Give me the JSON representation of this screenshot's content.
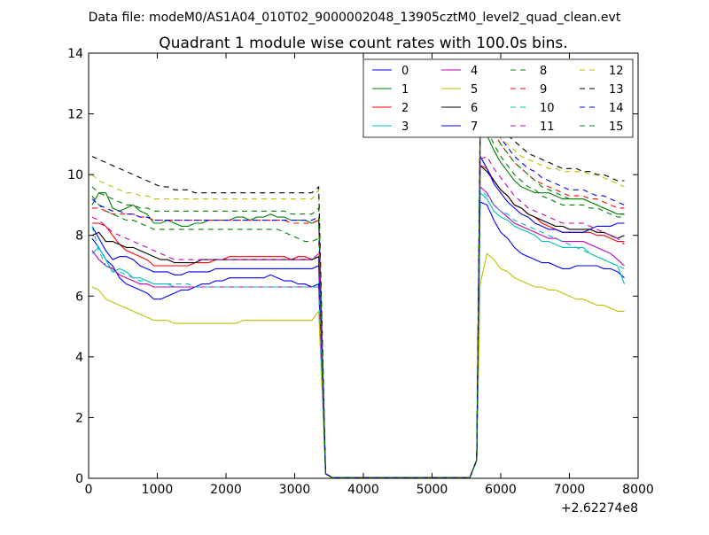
{
  "suptitle": "Data file: modeM0/AS1A04_010T02_9000002048_13905cztM0_level2_quad_clean.evt",
  "chart_data": {
    "type": "line",
    "title": "Quadrant 1 module wise count rates with 100.0s bins.",
    "xlabel": "",
    "ylabel": "",
    "x_offset_label": "+2.62274e8",
    "xlim": [
      0,
      8000
    ],
    "ylim": [
      0,
      14
    ],
    "xticks": [
      0,
      1000,
      2000,
      3000,
      4000,
      5000,
      6000,
      7000,
      8000
    ],
    "yticks": [
      0,
      2,
      4,
      6,
      8,
      10,
      12,
      14
    ],
    "grid": false,
    "legend_position": "top-right",
    "legend_columns": 4,
    "x_gap_start": 3500,
    "x_gap_end": 5600,
    "series": [
      {
        "name": "0",
        "color": "#0000ff",
        "dash": "solid",
        "segA": [
          7.9,
          7.6,
          7.2,
          7.0,
          6.6,
          6.4,
          6.3,
          6.2,
          6.1,
          5.9,
          5.9,
          6.0,
          6.1,
          6.2,
          6.2,
          6.3,
          6.4,
          6.4,
          6.5,
          6.5,
          6.6,
          6.6,
          6.6,
          6.6,
          6.6,
          6.6,
          6.7,
          6.6,
          6.5,
          6.5,
          6.4,
          6.4,
          6.3,
          6.4
        ],
        "segB": [
          9.1,
          9.0,
          8.5,
          8.1,
          7.9,
          7.6,
          7.4,
          7.3,
          7.2,
          7.1,
          7.1,
          7.0,
          6.9,
          6.9,
          7.0,
          7.0,
          7.0,
          7.0,
          6.9,
          6.9,
          6.8,
          6.6
        ]
      },
      {
        "name": "1",
        "color": "#008000",
        "dash": "solid",
        "segA": [
          9.0,
          9.4,
          9.4,
          8.9,
          8.8,
          8.9,
          9.0,
          8.8,
          8.7,
          8.4,
          8.4,
          8.5,
          8.4,
          8.3,
          8.3,
          8.4,
          8.4,
          8.5,
          8.5,
          8.5,
          8.5,
          8.6,
          8.6,
          8.5,
          8.6,
          8.6,
          8.7,
          8.6,
          8.6,
          8.5,
          8.5,
          8.5,
          8.4,
          8.5
        ],
        "segB": [
          11.4,
          11.3,
          10.8,
          10.4,
          10.1,
          9.8,
          9.6,
          9.5,
          9.4,
          9.4,
          9.4,
          9.3,
          9.2,
          9.2,
          9.2,
          9.2,
          9.1,
          9.0,
          8.9,
          8.8,
          8.7,
          8.7
        ]
      },
      {
        "name": "2",
        "color": "#ff0000",
        "dash": "solid",
        "segA": [
          8.4,
          8.4,
          8.3,
          8.0,
          7.7,
          7.5,
          7.4,
          7.3,
          7.2,
          7.0,
          7.0,
          7.0,
          7.0,
          7.0,
          7.0,
          7.1,
          7.1,
          7.1,
          7.2,
          7.2,
          7.3,
          7.3,
          7.3,
          7.3,
          7.3,
          7.3,
          7.3,
          7.3,
          7.3,
          7.2,
          7.3,
          7.3,
          7.2,
          7.3
        ],
        "segB": [
          10.3,
          10.2,
          9.8,
          9.5,
          9.3,
          9.0,
          8.9,
          8.7,
          8.6,
          8.4,
          8.3,
          8.2,
          8.1,
          8.1,
          8.1,
          8.1,
          8.1,
          8.0,
          8.0,
          7.9,
          7.8,
          7.8
        ]
      },
      {
        "name": "3",
        "color": "#00bfbf",
        "dash": "solid",
        "segA": [
          7.4,
          7.6,
          7.2,
          6.8,
          6.9,
          6.8,
          6.6,
          6.6,
          6.5,
          6.4,
          6.4,
          6.4,
          6.3,
          6.3,
          6.3,
          6.3,
          6.3,
          6.3,
          6.3,
          6.3,
          6.3,
          6.3,
          6.3,
          6.3,
          6.3,
          6.3,
          6.3,
          6.3,
          6.3,
          6.3,
          6.3,
          6.3,
          6.3,
          6.3
        ],
        "segB": [
          9.4,
          9.2,
          8.8,
          8.6,
          8.5,
          8.3,
          8.2,
          8.1,
          8.0,
          7.8,
          7.8,
          7.7,
          7.6,
          7.6,
          7.6,
          7.6,
          7.4,
          7.3,
          7.2,
          7.1,
          7.0,
          6.4
        ]
      },
      {
        "name": "4",
        "color": "#bf00bf",
        "dash": "solid",
        "segA": [
          7.5,
          7.2,
          7.0,
          6.9,
          6.7,
          6.6,
          6.5,
          6.4,
          6.4,
          6.3,
          6.3,
          6.3,
          6.3,
          6.3,
          6.3,
          6.3,
          6.3,
          6.3,
          6.3,
          6.3,
          6.3,
          6.3,
          6.3,
          6.3,
          6.3,
          6.3,
          6.3,
          6.3,
          6.3,
          6.3,
          6.3,
          6.3,
          6.3,
          6.3
        ],
        "segB": [
          9.6,
          9.4,
          9.0,
          8.8,
          8.6,
          8.4,
          8.3,
          8.2,
          8.1,
          8.0,
          7.9,
          7.9,
          7.8,
          7.8,
          7.8,
          7.8,
          7.7,
          7.6,
          7.5,
          7.4,
          7.2,
          7.0
        ]
      },
      {
        "name": "5",
        "color": "#bfbf00",
        "dash": "solid",
        "segA": [
          6.3,
          6.2,
          5.9,
          5.8,
          5.7,
          5.6,
          5.5,
          5.4,
          5.3,
          5.2,
          5.2,
          5.2,
          5.1,
          5.1,
          5.1,
          5.1,
          5.1,
          5.1,
          5.1,
          5.1,
          5.1,
          5.1,
          5.2,
          5.2,
          5.2,
          5.2,
          5.2,
          5.2,
          5.2,
          5.2,
          5.2,
          5.2,
          5.2,
          5.5
        ],
        "segB": [
          6.4,
          7.4,
          7.2,
          6.9,
          6.8,
          6.6,
          6.5,
          6.4,
          6.3,
          6.3,
          6.2,
          6.2,
          6.1,
          6.0,
          5.9,
          5.9,
          5.8,
          5.7,
          5.7,
          5.6,
          5.5,
          5.5
        ]
      },
      {
        "name": "6",
        "color": "#000000",
        "dash": "solid",
        "segA": [
          8.0,
          8.1,
          7.8,
          7.8,
          7.7,
          7.6,
          7.6,
          7.5,
          7.4,
          7.3,
          7.2,
          7.2,
          7.1,
          7.1,
          7.1,
          7.1,
          7.2,
          7.2,
          7.2,
          7.2,
          7.2,
          7.2,
          7.2,
          7.2,
          7.2,
          7.2,
          7.2,
          7.2,
          7.2,
          7.2,
          7.2,
          7.2,
          7.2,
          7.3
        ],
        "segB": [
          10.3,
          10.1,
          9.8,
          9.5,
          9.3,
          9.0,
          8.9,
          8.7,
          8.6,
          8.5,
          8.4,
          8.3,
          8.3,
          8.2,
          8.2,
          8.2,
          8.2,
          8.1,
          8.1,
          8.0,
          7.9,
          8.0
        ]
      },
      {
        "name": "7",
        "color": "#0000ff",
        "dash": "solid",
        "segA": [
          8.3,
          7.9,
          7.5,
          7.2,
          7.3,
          7.3,
          7.2,
          7.0,
          6.9,
          6.8,
          6.8,
          6.8,
          6.7,
          6.7,
          6.8,
          6.8,
          6.8,
          6.8,
          6.9,
          6.9,
          6.9,
          6.9,
          6.9,
          6.9,
          6.9,
          6.9,
          6.9,
          6.9,
          6.9,
          6.9,
          6.9,
          6.9,
          6.9,
          7.0
        ],
        "segB": [
          10.6,
          10.2,
          9.7,
          9.4,
          9.1,
          8.9,
          8.7,
          8.6,
          8.4,
          8.3,
          8.2,
          8.2,
          8.1,
          8.1,
          8.1,
          8.1,
          8.2,
          8.3,
          8.3,
          8.3,
          8.4,
          8.4
        ]
      },
      {
        "name": "8",
        "color": "#008000",
        "dash": "dashed",
        "segA": [
          9.3,
          9.0,
          8.8,
          8.7,
          8.6,
          8.5,
          8.5,
          8.4,
          8.3,
          8.2,
          8.2,
          8.2,
          8.2,
          8.2,
          8.2,
          8.2,
          8.2,
          8.2,
          8.2,
          8.2,
          8.2,
          8.2,
          8.2,
          8.2,
          8.2,
          8.2,
          8.2,
          8.2,
          8.1,
          8.0,
          7.9,
          7.8,
          7.8,
          7.9
        ],
        "segB": [
          11.2,
          11.5,
          11.0,
          10.6,
          10.3,
          10.0,
          9.8,
          9.6,
          9.5,
          9.3,
          9.2,
          9.1,
          9.0,
          9.0,
          9.0,
          9.0,
          8.9,
          8.9,
          8.8,
          8.7,
          8.6,
          8.6
        ]
      },
      {
        "name": "9",
        "color": "#ff0000",
        "dash": "dashed",
        "segA": [
          8.9,
          8.9,
          8.8,
          8.7,
          8.7,
          8.7,
          8.7,
          8.6,
          8.6,
          8.5,
          8.5,
          8.5,
          8.5,
          8.5,
          8.5,
          8.5,
          8.5,
          8.5,
          8.5,
          8.5,
          8.5,
          8.5,
          8.5,
          8.5,
          8.5,
          8.5,
          8.5,
          8.5,
          8.5,
          8.4,
          8.4,
          8.4,
          8.4,
          8.5
        ],
        "segB": [
          11.5,
          11.8,
          11.4,
          11.0,
          10.7,
          10.4,
          10.2,
          10.0,
          9.8,
          9.7,
          9.6,
          9.5,
          9.4,
          9.3,
          9.3,
          9.3,
          9.2,
          9.2,
          9.1,
          9.0,
          8.9,
          8.9
        ]
      },
      {
        "name": "10",
        "color": "#00bfbf",
        "dash": "dashed",
        "segA": [
          8.3,
          7.5,
          7.0,
          6.8,
          6.8,
          6.7,
          6.6,
          6.5,
          6.5,
          6.4,
          6.4,
          6.4,
          6.4,
          6.4,
          6.4,
          6.3,
          6.3,
          6.3,
          6.3,
          6.3,
          6.3,
          6.3,
          6.3,
          6.3,
          6.3,
          6.3,
          6.3,
          6.3,
          6.3,
          6.3,
          6.3,
          6.3,
          6.3,
          6.3
        ],
        "segB": [
          9.5,
          9.3,
          9.0,
          8.8,
          8.7,
          8.5,
          8.4,
          8.3,
          8.2,
          8.1,
          8.0,
          7.9,
          7.8,
          7.7,
          7.6,
          7.5,
          7.4,
          7.3,
          7.2,
          7.1,
          7.0,
          6.9
        ]
      },
      {
        "name": "11",
        "color": "#bf00bf",
        "dash": "dashed",
        "segA": [
          8.6,
          8.5,
          8.3,
          8.1,
          8.0,
          7.9,
          7.8,
          7.7,
          7.6,
          7.5,
          7.4,
          7.3,
          7.2,
          7.2,
          7.2,
          7.2,
          7.2,
          7.2,
          7.2,
          7.2,
          7.2,
          7.2,
          7.2,
          7.2,
          7.2,
          7.2,
          7.2,
          7.2,
          7.2,
          7.2,
          7.2,
          7.2,
          7.2,
          7.4
        ],
        "segB": [
          10.5,
          10.6,
          10.2,
          9.9,
          9.6,
          9.3,
          9.1,
          8.9,
          8.8,
          8.7,
          8.6,
          8.5,
          8.4,
          8.4,
          8.4,
          8.4,
          8.3,
          8.2,
          8.1,
          8.0,
          7.9,
          7.7
        ]
      },
      {
        "name": "12",
        "color": "#bfbf00",
        "dash": "dashed",
        "segA": [
          10.0,
          9.8,
          9.7,
          9.6,
          9.5,
          9.4,
          9.4,
          9.3,
          9.3,
          9.2,
          9.2,
          9.2,
          9.2,
          9.2,
          9.2,
          9.2,
          9.2,
          9.2,
          9.2,
          9.2,
          9.2,
          9.2,
          9.2,
          9.2,
          9.2,
          9.2,
          9.2,
          9.2,
          9.2,
          9.2,
          9.2,
          9.2,
          9.2,
          9.5
        ],
        "segB": [
          11.6,
          11.9,
          11.5,
          11.2,
          11.0,
          10.8,
          10.6,
          10.5,
          10.4,
          10.3,
          10.2,
          10.2,
          10.1,
          10.1,
          10.1,
          10.1,
          10.0,
          10.0,
          9.9,
          9.8,
          9.7,
          9.6
        ]
      },
      {
        "name": "13",
        "color": "#000000",
        "dash": "dashed",
        "segA": [
          10.6,
          10.5,
          10.4,
          10.3,
          10.2,
          10.1,
          10.0,
          9.9,
          9.8,
          9.7,
          9.6,
          9.6,
          9.5,
          9.5,
          9.5,
          9.4,
          9.4,
          9.4,
          9.4,
          9.4,
          9.4,
          9.4,
          9.4,
          9.4,
          9.4,
          9.4,
          9.4,
          9.4,
          9.4,
          9.4,
          9.4,
          9.4,
          9.4,
          9.6
        ],
        "segB": [
          11.8,
          12.1,
          11.8,
          11.5,
          11.3,
          11.1,
          10.9,
          10.7,
          10.6,
          10.5,
          10.4,
          10.3,
          10.2,
          10.2,
          10.2,
          10.1,
          10.1,
          10.0,
          10.0,
          9.9,
          9.8,
          9.8
        ]
      },
      {
        "name": "14",
        "color": "#0000ff",
        "dash": "dashed",
        "segA": [
          9.2,
          9.0,
          8.9,
          8.8,
          8.8,
          8.7,
          8.7,
          8.6,
          8.6,
          8.5,
          8.5,
          8.5,
          8.5,
          8.5,
          8.5,
          8.5,
          8.5,
          8.5,
          8.5,
          8.5,
          8.5,
          8.5,
          8.5,
          8.5,
          8.5,
          8.5,
          8.5,
          8.5,
          8.5,
          8.5,
          8.5,
          8.5,
          8.5,
          8.6
        ],
        "segB": [
          11.4,
          12.0,
          11.6,
          11.2,
          10.9,
          10.6,
          10.4,
          10.2,
          10.1,
          9.9,
          9.8,
          9.7,
          9.6,
          9.5,
          9.5,
          9.5,
          9.4,
          9.3,
          9.3,
          9.2,
          9.1,
          9.0
        ]
      },
      {
        "name": "15",
        "color": "#008000",
        "dash": "dashed",
        "segA": [
          9.6,
          9.4,
          9.3,
          9.2,
          9.1,
          9.0,
          9.0,
          8.9,
          8.9,
          8.8,
          8.8,
          8.8,
          8.8,
          8.8,
          8.8,
          8.8,
          8.8,
          8.8,
          8.8,
          8.8,
          8.8,
          8.8,
          8.8,
          8.8,
          8.8,
          8.8,
          8.8,
          8.8,
          8.8,
          8.7,
          8.7,
          8.7,
          8.7,
          8.9
        ],
        "segB": [
          11.5,
          11.8,
          11.4,
          11.0,
          10.7,
          10.4,
          10.2,
          10.0,
          9.8,
          9.6,
          9.5,
          9.4,
          9.3,
          9.2,
          9.2,
          9.2,
          9.1,
          9.0,
          8.9,
          8.8,
          8.7,
          8.7
        ]
      }
    ]
  }
}
